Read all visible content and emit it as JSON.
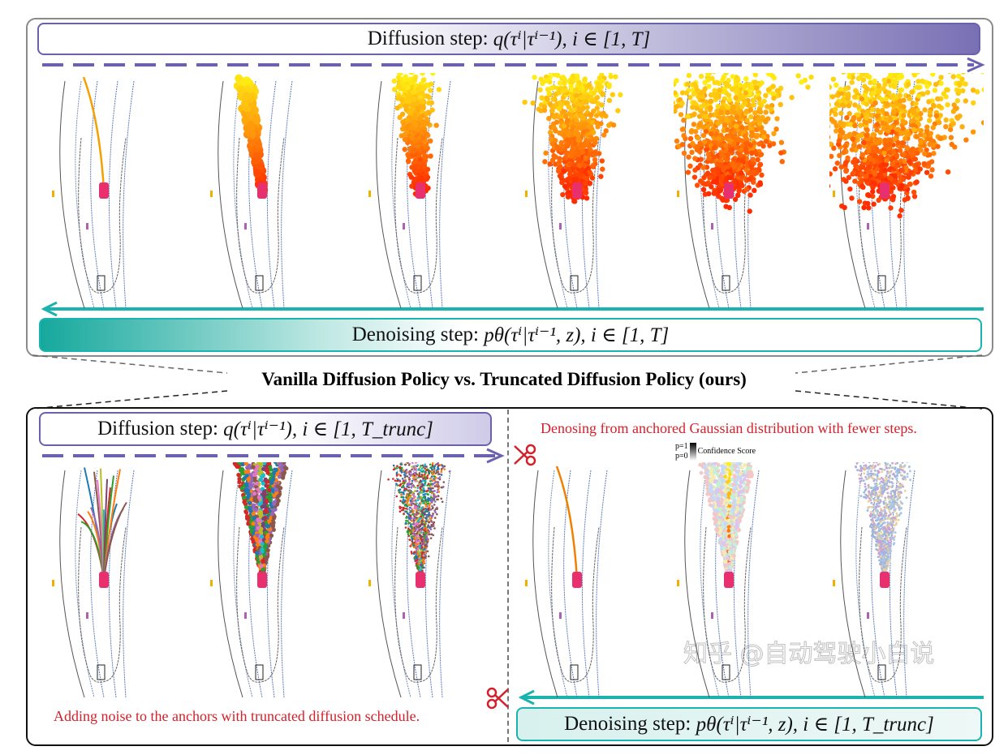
{
  "top_panel": {
    "diffusion_label": "Diffusion step: ",
    "diffusion_formula": "q(τⁱ|τⁱ⁻¹), i ∈ [1, T]",
    "denoising_label": "Denoising step: ",
    "denoising_formula": "pθ(τⁱ|τⁱ⁻¹, z), i ∈ [1, T]"
  },
  "title": "Vanilla Diffusion Policy vs. Truncated Diffusion Policy (ours)",
  "bottom_panel": {
    "diffusion_label": "Diffusion step: ",
    "diffusion_formula": "q(τⁱ|τⁱ⁻¹), i ∈ [1, T_trunc]",
    "denoising_label": "Denoising step: ",
    "denoising_formula": "pθ(τⁱ|τⁱ⁻¹, z), i ∈ [1, T_trunc]",
    "left_caption": "Adding noise to the anchors with truncated diffusion schedule.",
    "right_caption": "Denosing from anchored Gaussian distribution with fewer steps.",
    "legend": {
      "p1": "p=1",
      "p0": "p=0",
      "label": "Confidence Score"
    }
  },
  "watermark": "知乎 @自动驾驶小白说",
  "colors": {
    "diffusion_purple": "#7069b0",
    "denoising_teal": "#1bb3ad",
    "caption_red": "#d4202a",
    "car": "#e8306e"
  }
}
